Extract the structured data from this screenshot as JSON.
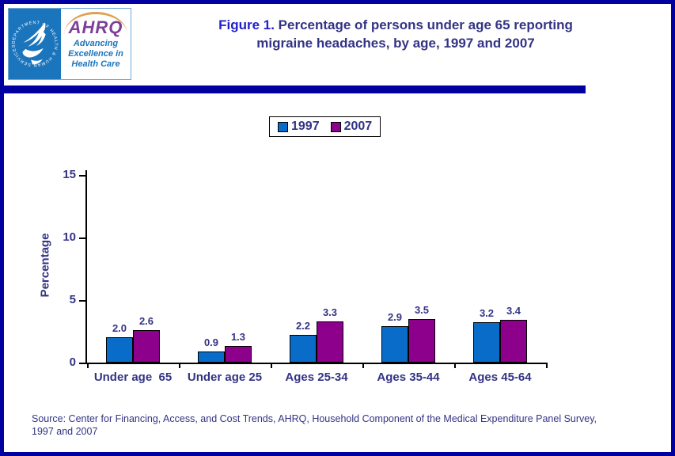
{
  "header": {
    "title_prefix": "Figure 1.",
    "title_rest_line1": " Percentage of persons under age 65 reporting",
    "title_rest_line2": "migraine headaches, by age, 1997 and 2007",
    "logo": {
      "ring_text": "DEPARTMENT OF HEALTH & HUMAN SERVICES · USA",
      "ahrq": "AHRQ",
      "tagline_line1": "Advancing",
      "tagline_line2": "Excellence in",
      "tagline_line3": "Health Care"
    }
  },
  "chart_data": {
    "type": "bar",
    "categories": [
      "Under age  65",
      "Under age 25",
      "Ages 25-34",
      "Ages 35-44",
      "Ages 45-64"
    ],
    "series": [
      {
        "name": "1997",
        "color": "#0a6cc9",
        "values": [
          2.0,
          0.9,
          2.2,
          2.9,
          3.2
        ]
      },
      {
        "name": "2007",
        "color": "#8c008c",
        "values": [
          2.6,
          1.3,
          3.3,
          3.5,
          3.4
        ]
      }
    ],
    "title": "Percentage of persons under age 65 reporting migraine headaches, by age, 1997 and 2007",
    "xlabel": "",
    "ylabel": "Percentage",
    "yticks": [
      0,
      5,
      10,
      15
    ],
    "ylim": [
      0,
      15
    ],
    "grid": false,
    "legend_position": "top-center",
    "value_labels_shown": true
  },
  "source": {
    "line1": "Source: Center for Financing, Access, and Cost Trends, AHRQ, Household Component of the Medical Expenditure Panel Survey,",
    "line2": "1997 and 2007"
  },
  "colors": {
    "frame_border": "#0000a0",
    "divider": "#0000a0",
    "title_prefix": "#2121cc",
    "text_navy": "#333385",
    "bar_1997": "#0a6cc9",
    "bar_2007": "#8c008c",
    "hhs_blue": "#1b75bc",
    "ahrq_purple": "#7d3f98",
    "arc_orange": "#dfa052"
  }
}
